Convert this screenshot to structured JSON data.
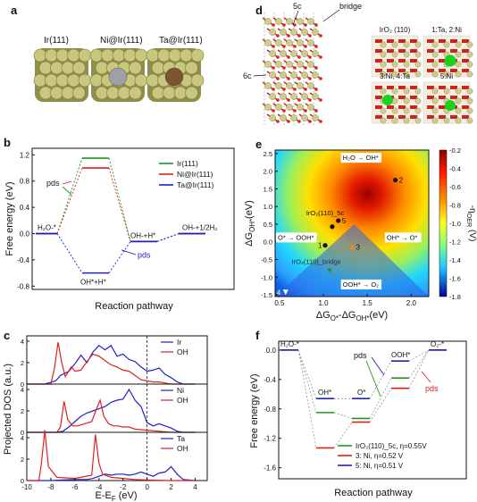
{
  "panels": {
    "a": {
      "label": "a",
      "items": [
        {
          "title": "Ir(111)",
          "dopant_color": "#b5b561"
        },
        {
          "title": "Ni@Ir(111)",
          "dopant_color": "#9ea0a8"
        },
        {
          "title": "Ta@Ir(111)",
          "dopant_color": "#7a5530"
        }
      ]
    },
    "b": {
      "label": "b",
      "ylabel": "Free energy (eV)",
      "xlabel": "Reaction pathway",
      "annotations": {
        "h2o": "H₂O-*",
        "ohh": "OH*+H*",
        "oh_h": "OH-+H*",
        "oh_h2": "OH-+1/2H₂",
        "pds1": "pds",
        "pds2": "pds"
      }
    },
    "c": {
      "label": "c",
      "ylabel": "Projected DOS (a.u.)",
      "xlabel": "E-E",
      "xlabel_sub": "F",
      "xlabel_unit": " (eV)",
      "legends": [
        {
          "metal": "Ir",
          "oh": "OH"
        },
        {
          "metal": "Ni",
          "oh": "OH"
        },
        {
          "metal": "Ta",
          "oh": "OH"
        }
      ]
    },
    "d": {
      "label": "d",
      "annotations": {
        "c5": "5c",
        "bridge": "bridge",
        "c6": "6c"
      },
      "small": [
        {
          "title": "IrO₂ (110)"
        },
        {
          "title": "1:Ta, 2:Ni"
        },
        {
          "title": "3:Ni, 4:Ta"
        },
        {
          "title": "5:Ni"
        }
      ]
    },
    "e": {
      "label": "e",
      "ylabel": "ΔG",
      "ylabel_sub": "OH*",
      "ylabel_unit": "(eV)",
      "xlabel": "ΔG",
      "xlabel_sub1": "O*",
      "xlabel_mid": "-ΔG",
      "xlabel_sub2": "OH*",
      "xlabel_unit": "(eV)",
      "cbar_label": "-η",
      "cbar_sub": "OER",
      "cbar_unit": " (V)",
      "region_labels": {
        "top": "H₂O → OH*",
        "left": "O* → OOH*",
        "right": "OH* → O*",
        "bottom": "OOH* → O₂"
      },
      "point_labels": {
        "p5c": "IrO₂(110)_5c",
        "pbridge": "IrO₂(110)_bridge"
      }
    },
    "f": {
      "label": "f",
      "ylabel": "Free energy (eV)",
      "xlabel": "Reaction pathway",
      "annotations": {
        "h2o": "H₂O-*",
        "oh": "OH*",
        "o": "O*",
        "ooh": "OOH*",
        "o2": "O₂-*",
        "pds1": "pds",
        "pds2": "pds"
      }
    }
  },
  "chart_data": [
    {
      "type": "line",
      "panel": "b",
      "xlabel": "Reaction pathway",
      "ylabel": "Free energy (eV)",
      "ylim": [
        -0.85,
        1.3
      ],
      "yticks": [
        "1.2",
        "0.8",
        "0.4",
        "0.0",
        "-0.4",
        "-0.8"
      ],
      "steps": [
        "H₂O-*",
        "OH*+H*",
        "OH-+H*",
        "OH-+1/2H₂"
      ],
      "series": [
        {
          "name": "Ir(111)",
          "color": "#1a9a1a",
          "values": [
            0.0,
            1.15,
            -0.12,
            0.0
          ]
        },
        {
          "name": "Ni@Ir(111)",
          "color": "#e02020",
          "values": [
            0.0,
            1.0,
            -0.12,
            0.0
          ]
        },
        {
          "name": "Ta@Ir(111)",
          "color": "#2020d0",
          "values": [
            0.0,
            -0.6,
            -0.12,
            0.0
          ]
        }
      ]
    },
    {
      "type": "line",
      "panel": "c",
      "xlabel": "E-EF (eV)",
      "ylabel": "Projected DOS (a.u.)",
      "xlim": [
        -10,
        5
      ],
      "xticks": [
        "-10",
        "-8",
        "-6",
        "-4",
        "-2",
        "0",
        "2",
        "4"
      ],
      "subplots": [
        {
          "yticks": [
            "0",
            "2",
            "4"
          ],
          "ylim": [
            0,
            4.5
          ],
          "series": [
            {
              "name": "Ir",
              "color": "#2020c8",
              "x": [
                -10,
                -8.5,
                -7.6,
                -7.2,
                -6.5,
                -6,
                -5.5,
                -5,
                -4.5,
                -4,
                -3.5,
                -3,
                -2.5,
                -2,
                -1.5,
                -1,
                -0.5,
                0,
                0.5,
                1,
                1.5,
                2,
                2.5,
                3,
                4
              ],
              "y": [
                0,
                0,
                0.3,
                0.8,
                1.2,
                1.9,
                2.7,
                2.0,
                3.0,
                3.6,
                3.2,
                3.6,
                2.6,
                2.8,
                2.3,
                2.1,
                1.6,
                1.2,
                1.3,
                1.5,
                0.9,
                0.6,
                0.2,
                0,
                0
              ]
            },
            {
              "name": "OH",
              "color": "#e02020",
              "x": [
                -10,
                -8,
                -7.7,
                -7.4,
                -7.1,
                -6.8,
                -6.3,
                -6,
                -5.5,
                -5,
                -4.5,
                -4,
                -3.5,
                -3,
                -2.5,
                -2,
                -1.5,
                -1,
                -0.5,
                0,
                0.5,
                1,
                1.5,
                2,
                4
              ],
              "y": [
                0,
                0,
                1.5,
                3.9,
                2.0,
                0.7,
                1.6,
                1.2,
                1.3,
                2.1,
                2.8,
                2.6,
                2.2,
                1.8,
                1.6,
                1.3,
                1.2,
                0.8,
                0.4,
                0.3,
                0.2,
                0.2,
                0.1,
                0,
                0
              ]
            }
          ]
        },
        {
          "yticks": [
            "0",
            "2",
            "4"
          ],
          "ylim": [
            0,
            4.5
          ],
          "series": [
            {
              "name": "Ni",
              "color": "#2020c8",
              "x": [
                -10,
                -7.5,
                -7,
                -6.5,
                -6,
                -5.5,
                -5,
                -4.5,
                -4,
                -3.5,
                -3,
                -2.5,
                -2,
                -1.5,
                -1,
                -0.5,
                0,
                0.5,
                1,
                1.5,
                2,
                2.5,
                3,
                4
              ],
              "y": [
                0,
                0,
                0.1,
                0.5,
                1.0,
                1.5,
                1.8,
                2.0,
                2.2,
                2.4,
                2.8,
                3.0,
                3.1,
                4.0,
                3.0,
                2.4,
                0.9,
                0.6,
                0.8,
                0.6,
                0.4,
                0.1,
                0,
                0
              ]
            },
            {
              "name": "OH",
              "color": "#e02020",
              "x": [
                -10,
                -7.5,
                -7.2,
                -6.9,
                -6.6,
                -6.2,
                -5.8,
                -5.2,
                -4.6,
                -4.2,
                -3.9,
                -3.6,
                -3.2,
                -2.8,
                -2.4,
                -2,
                -1.5,
                -1,
                0,
                1,
                2,
                4
              ],
              "y": [
                0,
                0,
                0.5,
                2.9,
                1.2,
                0.6,
                0.6,
                0.8,
                1.0,
                2.2,
                3.0,
                1.5,
                0.8,
                0.6,
                0.6,
                0.5,
                0.5,
                0.3,
                0.2,
                0.1,
                0,
                0
              ]
            }
          ]
        },
        {
          "yticks": [
            "0",
            "2",
            "4"
          ],
          "ylim": [
            0,
            4.5
          ],
          "series": [
            {
              "name": "Ta",
              "color": "#2020c8",
              "x": [
                -10,
                -8,
                -7,
                -6,
                -5,
                -4.5,
                -4,
                -3.5,
                -3,
                -2.5,
                -2,
                -1.5,
                -1,
                -0.5,
                0,
                0.5,
                1,
                1.5,
                2,
                2.5,
                3,
                4
              ],
              "y": [
                0,
                0,
                0.05,
                0.1,
                0.1,
                0.2,
                0.4,
                0.6,
                0.5,
                0.6,
                0.6,
                0.5,
                0.6,
                0.8,
                0.6,
                0.4,
                0.7,
                0.8,
                1.3,
                0.6,
                0.1,
                0
              ]
            },
            {
              "name": "OH",
              "color": "#e02020",
              "x": [
                -10,
                -9,
                -8.8,
                -8.5,
                -8.2,
                -7.5,
                -6,
                -4.6,
                -4.3,
                -4.0,
                -3.7,
                -3,
                -2,
                -1,
                0,
                2,
                4
              ],
              "y": [
                0,
                0,
                1.5,
                4.7,
                1.3,
                0.3,
                0.2,
                0.5,
                4.3,
                1.6,
                0.6,
                0.3,
                0.2,
                0.1,
                0.05,
                0,
                0
              ]
            }
          ]
        }
      ]
    },
    {
      "type": "heatmap",
      "panel": "e",
      "xlabel": "ΔGO*-ΔGOH*(eV)",
      "ylabel": "ΔGOH*(eV)",
      "xlim": [
        0.45,
        2.2
      ],
      "ylim": [
        -1.55,
        2.6
      ],
      "xticks": [
        0.5,
        1.0,
        1.5,
        2.0
      ],
      "yticks": [
        -1.5,
        -1.0,
        -0.5,
        0.0,
        0.5,
        1.0,
        1.5,
        2.0,
        2.5
      ],
      "colorbar": {
        "min": -1.8,
        "max": -0.2,
        "ticks": [
          "-0.2",
          "-0.4",
          "-0.6",
          "-0.8",
          "-1.0",
          "-1.2",
          "-1.4",
          "-1.6",
          "-1.8"
        ],
        "label": "-ηOER (V)"
      },
      "points": [
        {
          "label": "1",
          "x": 1.02,
          "y": -0.1
        },
        {
          "label": "2",
          "x": 1.82,
          "y": 1.75
        },
        {
          "label": "3",
          "x": 1.33,
          "y": -0.15
        },
        {
          "label": "4",
          "x": 0.57,
          "y": -1.43
        },
        {
          "label": "5",
          "x": 1.17,
          "y": 0.6
        },
        {
          "label": "",
          "x": 1.1,
          "y": 0.43
        },
        {
          "label": "",
          "x": 1.07,
          "y": -0.82
        }
      ]
    },
    {
      "type": "line",
      "panel": "f",
      "xlabel": "Reaction pathway",
      "ylabel": "Free energy (eV)",
      "ylim": [
        -1.75,
        0.12
      ],
      "yticks": [
        "0.0",
        "-0.4",
        "-0.8",
        "-1.2",
        "-1.6"
      ],
      "steps": [
        "H₂O-*",
        "OH*",
        "O*",
        "OOH*",
        "O₂-*"
      ],
      "series": [
        {
          "name": "IrO₂(110)_5c, η=0.55V",
          "color": "#1a9a1a",
          "values": [
            0.0,
            -0.85,
            -0.93,
            -0.38,
            0.0
          ]
        },
        {
          "name": "3: Ni, η=0.52 V",
          "color": "#e02020",
          "values": [
            0.0,
            -1.33,
            -0.98,
            -0.52,
            0.0
          ]
        },
        {
          "name": "5: Ni, η=0.51 V",
          "color": "#2020d0",
          "values": [
            0.0,
            -0.66,
            -0.66,
            -0.15,
            0.0
          ]
        }
      ]
    }
  ]
}
